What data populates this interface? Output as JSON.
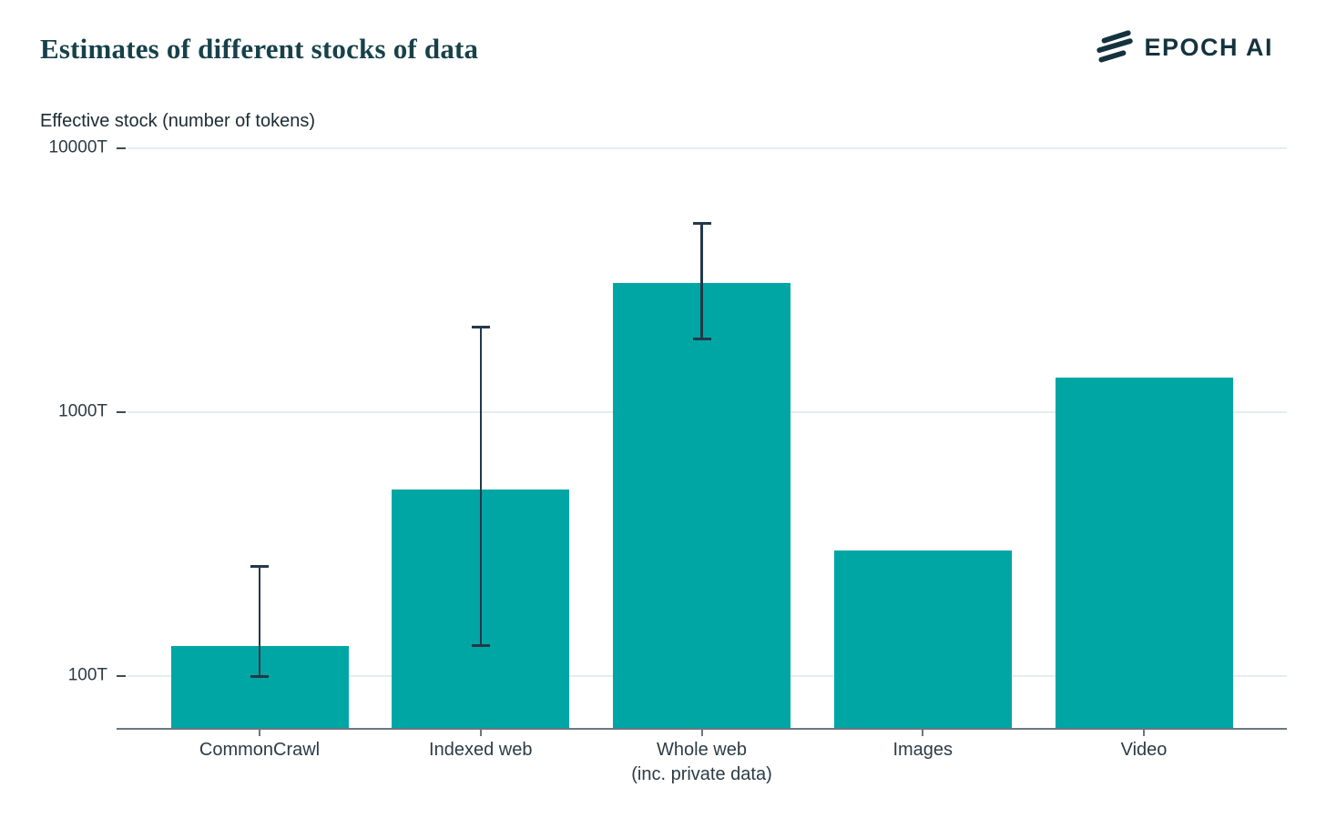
{
  "header": {
    "title": "Estimates of different stocks of data",
    "logo_text": "EPOCH AI"
  },
  "colors": {
    "bar": "#00a6a4",
    "error": "#24384a",
    "grid": "#e3eef0",
    "axis": "#6b7681",
    "title": "#17414b",
    "text": "#2c3b46",
    "brand": "#14333e"
  },
  "chart_data": {
    "type": "bar",
    "title": "Estimates of different stocks of data",
    "ylabel": "Effective stock (number of tokens)",
    "xlabel": "",
    "scale": "log",
    "unit": "T",
    "grid": "horizontal",
    "legend": "none",
    "categories": [
      "CommonCrawl",
      "Indexed web",
      "Whole web\n(inc. private data)",
      "Images",
      "Video"
    ],
    "values": [
      130,
      510,
      3100,
      300,
      1350
    ],
    "error_bars": [
      {
        "low": 100,
        "high": 260
      },
      {
        "low": 130,
        "high": 2100
      },
      {
        "low": 1900,
        "high": 5200
      },
      null,
      null
    ],
    "y_ticks": [
      {
        "label": "100T",
        "value": 100
      },
      {
        "label": "1000T",
        "value": 1000
      },
      {
        "label": "10000T",
        "value": 10000
      }
    ],
    "ylim": [
      63,
      10000
    ]
  }
}
